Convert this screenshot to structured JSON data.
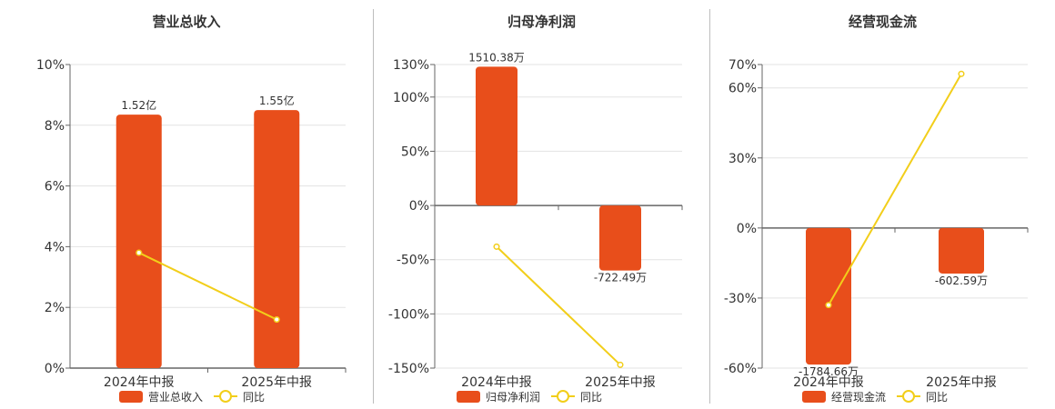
{
  "colors": {
    "bar": "#E84E1B",
    "line": "#F2CE1A",
    "axis": "#666666",
    "grid": "#E3E3E3"
  },
  "legend": {
    "line_label": "同比"
  },
  "chart_data": [
    {
      "type": "bar",
      "title": "营业总收入",
      "categories": [
        "2024年中报",
        "2025年中报"
      ],
      "series": [
        {
          "name": "营业总收入",
          "type": "bar",
          "values": [
            8.35,
            8.5
          ],
          "labels": [
            "1.52亿",
            "1.55亿"
          ]
        },
        {
          "name": "同比",
          "type": "line",
          "values": [
            3.8,
            1.6
          ]
        }
      ],
      "yticks": [
        "10%",
        "8%",
        "6%",
        "4%",
        "2%",
        "0%"
      ],
      "ylim": [
        0,
        10
      ]
    },
    {
      "type": "bar",
      "title": "归母净利润",
      "categories": [
        "2024年中报",
        "2025年中报"
      ],
      "series": [
        {
          "name": "归母净利润",
          "type": "bar",
          "values": [
            128,
            -60
          ],
          "labels": [
            "1510.38万",
            "-722.49万"
          ]
        },
        {
          "name": "同比",
          "type": "line",
          "values": [
            -38,
            -147
          ]
        }
      ],
      "yticks": [
        "130%",
        "100%",
        "50%",
        "0%",
        "-50%",
        "-100%",
        "-150%"
      ],
      "ylim": [
        -150,
        130
      ]
    },
    {
      "type": "bar",
      "title": "经营现金流",
      "categories": [
        "2024年中报",
        "2025年中报"
      ],
      "series": [
        {
          "name": "经营现金流",
          "type": "bar",
          "values": [
            -58.5,
            -19.5
          ],
          "labels": [
            "-1784.66万",
            "-602.59万"
          ]
        },
        {
          "name": "同比",
          "type": "line",
          "values": [
            -33,
            66
          ]
        }
      ],
      "yticks": [
        "70%",
        "60%",
        "30%",
        "0%",
        "-30%",
        "-60%"
      ],
      "ylim": [
        -60,
        70
      ]
    }
  ]
}
